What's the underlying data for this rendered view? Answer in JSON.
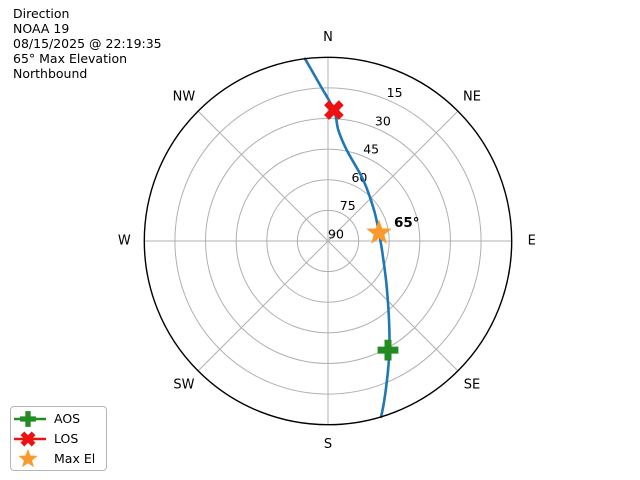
{
  "chart_data": {
    "type": "line",
    "projection": "polar-azimuth-elevation",
    "header_lines": [
      "Direction",
      "NOAA 19",
      "08/15/2025 @ 22:19:35",
      "65° Max Elevation",
      "Northbound"
    ],
    "compass_labels": [
      "N",
      "NE",
      "E",
      "SE",
      "S",
      "SW",
      "W",
      "NW"
    ],
    "elevation_rings": [
      15,
      30,
      45,
      60,
      75,
      90
    ],
    "ring_label_azimuth_deg": 22.5,
    "grid_color": "#b0b0b0",
    "outline_color": "#000000",
    "track": {
      "name": "satellite-pass-track",
      "color": "#1f77b4",
      "points_az_el": [
        [
          352.8,
          0
        ],
        [
          357.1,
          13.5
        ],
        [
          2.6,
          25.8
        ],
        [
          5.3,
          35.4
        ],
        [
          11.6,
          44.5
        ],
        [
          30.1,
          55.5
        ],
        [
          56.0,
          62.8
        ],
        [
          81.0,
          64.7
        ],
        [
          99.5,
          63.2
        ],
        [
          120.6,
          57.3
        ],
        [
          132.2,
          50.7
        ],
        [
          142.3,
          41.1
        ],
        [
          149.4,
          30.8
        ],
        [
          154.0,
          22.4
        ],
        [
          157.9,
          13.9
        ],
        [
          160.8,
          6.5
        ],
        [
          163.2,
          0
        ]
      ]
    },
    "markers": [
      {
        "label": "AOS",
        "shape": "plus",
        "color": "#228b22",
        "azimuth_deg": 151.2,
        "elevation_deg": 29.0,
        "legend_line": true
      },
      {
        "label": "LOS",
        "shape": "x",
        "color": "#ee1111",
        "azimuth_deg": 2.6,
        "elevation_deg": 25.8,
        "legend_line": true
      },
      {
        "label": "Max El",
        "shape": "star",
        "color": "#fb9a2c",
        "azimuth_deg": 81.0,
        "elevation_deg": 64.7,
        "legend_line": false
      }
    ],
    "annotation": {
      "text": "65°",
      "attached_to": "Max El"
    }
  }
}
